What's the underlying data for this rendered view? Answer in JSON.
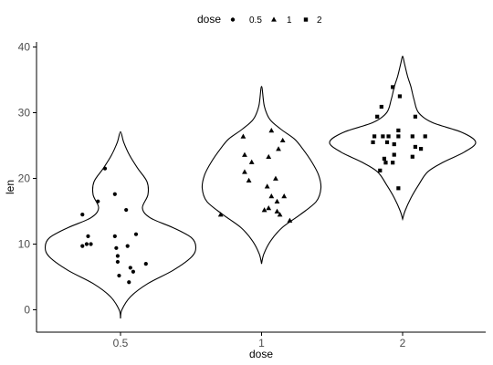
{
  "chart_data": {
    "type": "violin",
    "xlabel": "dose",
    "ylabel": "len",
    "categories": [
      "0.5",
      "1",
      "2"
    ],
    "yticks": [
      0,
      10,
      20,
      30,
      40
    ],
    "ylim": [
      -3.5,
      41
    ],
    "grid": false,
    "legend": {
      "title": "dose",
      "position": "top",
      "entries": [
        {
          "label": "0.5",
          "shape": "circle"
        },
        {
          "label": "1",
          "shape": "triangle"
        },
        {
          "label": "2",
          "shape": "square"
        }
      ]
    },
    "violins": [
      {
        "category": "0.5",
        "ymin": -1.3,
        "ymax": 27.1,
        "profile": [
          [
            -1.3,
            0
          ],
          [
            0,
            0.3
          ],
          [
            2,
            2.2
          ],
          [
            4,
            6
          ],
          [
            6,
            11.5
          ],
          [
            8,
            15.5
          ],
          [
            9.5,
            16.5
          ],
          [
            11,
            15.5
          ],
          [
            12.5,
            11.5
          ],
          [
            14,
            6.5
          ],
          [
            15.5,
            4.8
          ],
          [
            17.5,
            6
          ],
          [
            19.5,
            5.8
          ],
          [
            21.5,
            3.8
          ],
          [
            23.5,
            2
          ],
          [
            25.5,
            0.7
          ],
          [
            27.1,
            0
          ]
        ]
      },
      {
        "category": "1",
        "ymin": 7,
        "ymax": 34,
        "profile": [
          [
            7,
            0
          ],
          [
            8.5,
            0.5
          ],
          [
            10.5,
            2
          ],
          [
            12.5,
            4.5
          ],
          [
            14.5,
            8.5
          ],
          [
            16.5,
            12
          ],
          [
            18.5,
            13
          ],
          [
            20.5,
            12.5
          ],
          [
            22.5,
            11
          ],
          [
            24.5,
            9
          ],
          [
            26,
            7.2
          ],
          [
            27.5,
            4.2
          ],
          [
            29,
            1.8
          ],
          [
            31,
            0.6
          ],
          [
            34,
            0
          ]
        ]
      },
      {
        "category": "2",
        "ymin": 13.8,
        "ymax": 38.6,
        "profile": [
          [
            13.8,
            0
          ],
          [
            15,
            0.5
          ],
          [
            17,
            1.8
          ],
          [
            19,
            3.5
          ],
          [
            21,
            5.5
          ],
          [
            22.5,
            9
          ],
          [
            24,
            13.5
          ],
          [
            25.5,
            16
          ],
          [
            27,
            13
          ],
          [
            28.5,
            6.5
          ],
          [
            30,
            3.5
          ],
          [
            32,
            2.5
          ],
          [
            34,
            1.8
          ],
          [
            35.5,
            1.1
          ],
          [
            37.5,
            0.4
          ],
          [
            38.6,
            0
          ]
        ]
      }
    ],
    "series": [
      {
        "category": "0.5",
        "shape": "circle",
        "points": [
          [
            -0.11,
            21.5
          ],
          [
            -0.04,
            17.6
          ],
          [
            -0.16,
            16.5
          ],
          [
            -0.27,
            14.5
          ],
          [
            0.04,
            15.2
          ],
          [
            0.11,
            11.5
          ],
          [
            -0.23,
            11.2
          ],
          [
            -0.04,
            11.2
          ],
          [
            -0.24,
            10.0
          ],
          [
            -0.27,
            9.7
          ],
          [
            -0.21,
            10.0
          ],
          [
            0.05,
            9.7
          ],
          [
            -0.03,
            9.4
          ],
          [
            -0.02,
            8.2
          ],
          [
            -0.02,
            7.3
          ],
          [
            0.07,
            6.4
          ],
          [
            0.18,
            7.0
          ],
          [
            0.09,
            5.8
          ],
          [
            -0.01,
            5.2
          ],
          [
            0.06,
            4.2
          ]
        ]
      },
      {
        "category": "1",
        "shape": "triangle",
        "points": [
          [
            0.07,
            27.3
          ],
          [
            -0.13,
            26.4
          ],
          [
            0.15,
            25.8
          ],
          [
            0.12,
            24.5
          ],
          [
            -0.12,
            23.6
          ],
          [
            0.05,
            23.3
          ],
          [
            -0.07,
            22.5
          ],
          [
            -0.12,
            21.0
          ],
          [
            0.1,
            20.0
          ],
          [
            -0.09,
            19.7
          ],
          [
            0.04,
            18.8
          ],
          [
            0.16,
            17.3
          ],
          [
            0.07,
            17.3
          ],
          [
            0.11,
            16.5
          ],
          [
            0.05,
            15.5
          ],
          [
            0.02,
            15.2
          ],
          [
            0.11,
            15.0
          ],
          [
            0.13,
            14.5
          ],
          [
            -0.29,
            14.5
          ],
          [
            0.2,
            13.6
          ]
        ]
      },
      {
        "category": "2",
        "shape": "square",
        "points": [
          [
            -0.07,
            33.9
          ],
          [
            -0.02,
            32.5
          ],
          [
            -0.15,
            30.9
          ],
          [
            -0.18,
            29.4
          ],
          [
            0.09,
            29.4
          ],
          [
            -0.03,
            27.3
          ],
          [
            -0.2,
            26.4
          ],
          [
            -0.14,
            26.4
          ],
          [
            -0.1,
            26.4
          ],
          [
            0.07,
            26.4
          ],
          [
            0.16,
            26.4
          ],
          [
            -0.03,
            26.4
          ],
          [
            -0.21,
            25.5
          ],
          [
            -0.11,
            25.5
          ],
          [
            -0.06,
            25.2
          ],
          [
            0.09,
            24.8
          ],
          [
            0.13,
            24.5
          ],
          [
            -0.06,
            23.6
          ],
          [
            0.07,
            23.3
          ],
          [
            -0.13,
            23.0
          ],
          [
            -0.12,
            22.4
          ],
          [
            -0.07,
            22.4
          ],
          [
            -0.16,
            21.2
          ],
          [
            -0.03,
            18.5
          ]
        ]
      }
    ]
  }
}
